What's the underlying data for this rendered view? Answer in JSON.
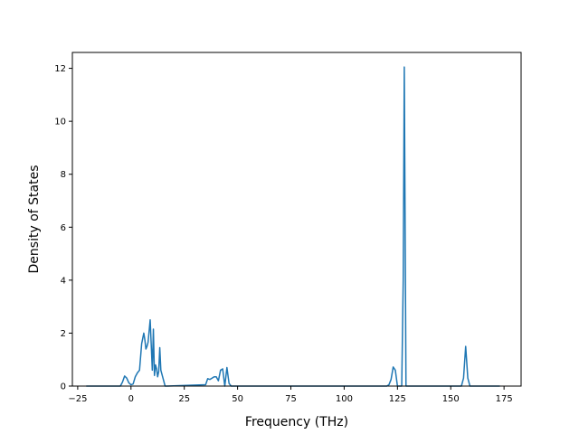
{
  "chart_data": {
    "type": "line",
    "title": "",
    "xlabel": "Frequency (THz)",
    "ylabel": "Density of States",
    "xlim": [
      -27.5,
      183
    ],
    "ylim": [
      0,
      12.6
    ],
    "xticks": [
      -25,
      0,
      25,
      50,
      75,
      100,
      125,
      150,
      175
    ],
    "yticks": [
      0,
      2,
      4,
      6,
      8,
      10,
      12
    ],
    "grid": false,
    "legend": "none",
    "series": [
      {
        "color": "#1f77b4",
        "x": [
          -21,
          -5,
          -4,
          -3,
          -2,
          -1,
          0,
          1,
          2,
          3,
          4,
          5,
          6,
          6.5,
          7,
          7.5,
          8,
          9,
          10,
          10.5,
          11,
          11.5,
          12,
          12.5,
          13,
          13.5,
          14,
          15,
          16,
          17,
          35,
          36,
          37,
          38,
          39,
          40,
          41,
          42,
          43,
          44,
          45,
          46,
          47,
          48,
          120,
          121,
          122,
          123,
          124,
          125,
          126,
          127,
          127.7,
          128.2,
          129,
          130,
          155,
          156,
          157,
          158,
          159,
          173
        ],
        "y": [
          0,
          0,
          0.15,
          0.38,
          0.3,
          0.12,
          0.05,
          0.08,
          0.35,
          0.5,
          0.6,
          1.6,
          2.0,
          1.75,
          1.4,
          1.5,
          1.65,
          2.5,
          0.6,
          2.15,
          0.4,
          0.8,
          0.65,
          0.35,
          0.55,
          1.45,
          0.6,
          0.3,
          0,
          0,
          0.05,
          0.28,
          0.25,
          0.3,
          0.35,
          0.35,
          0.2,
          0.6,
          0.65,
          0.0,
          0.7,
          0.1,
          0,
          0,
          0,
          0.05,
          0.25,
          0.72,
          0.6,
          0,
          0,
          0,
          4.0,
          12.05,
          0,
          0,
          0,
          0.3,
          1.5,
          0.3,
          0,
          0
        ]
      }
    ]
  }
}
